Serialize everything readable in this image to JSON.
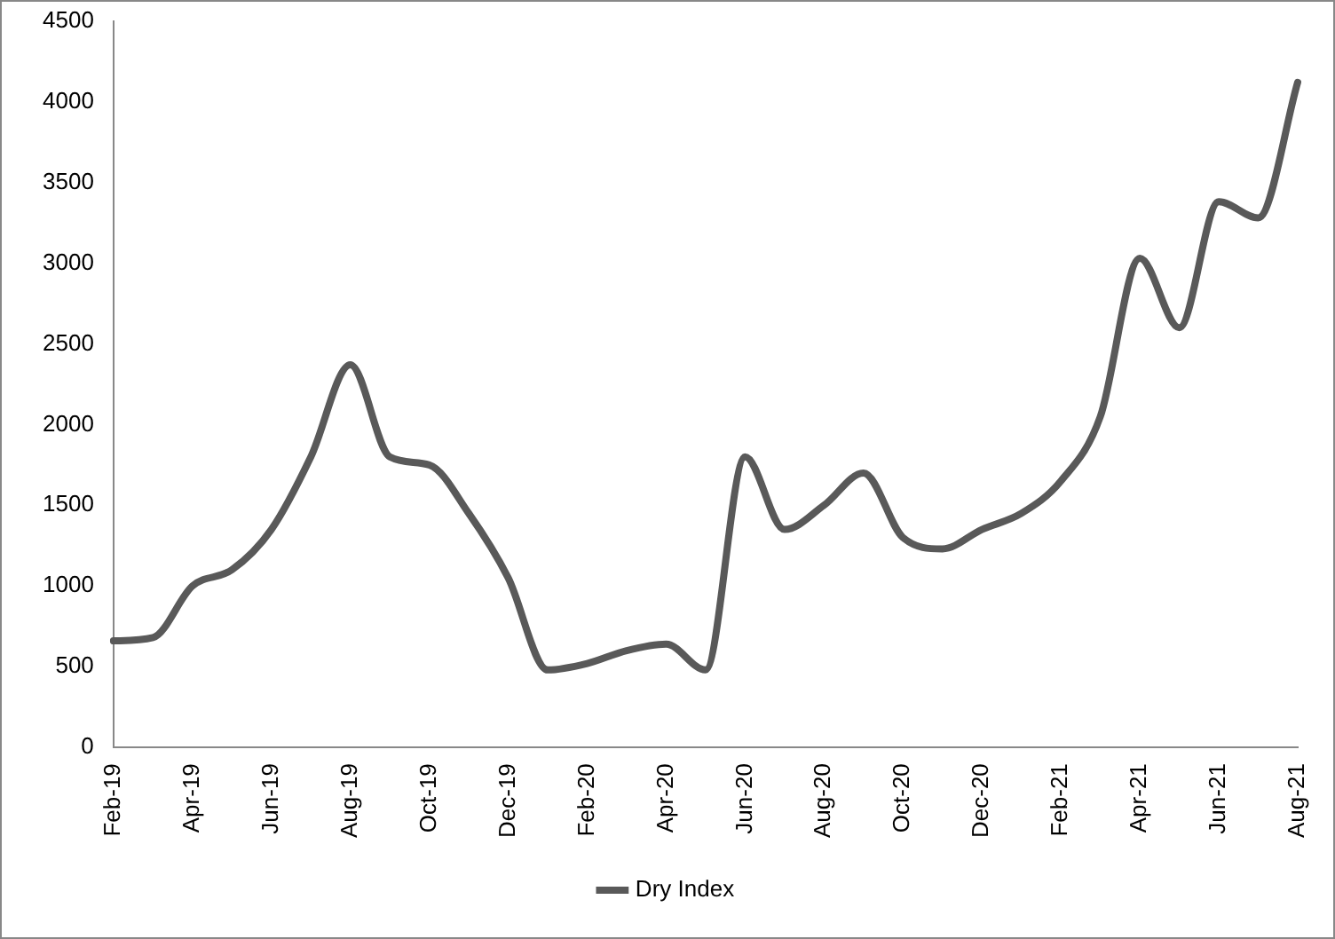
{
  "chart_data": {
    "type": "line",
    "categories": [
      "Feb-19",
      null,
      "Apr-19",
      null,
      "Jun-19",
      null,
      "Aug-19",
      null,
      "Oct-19",
      null,
      "Dec-19",
      null,
      "Feb-20",
      null,
      "Apr-20",
      null,
      "Jun-20",
      null,
      "Aug-20",
      null,
      "Oct-20",
      null,
      "Dec-20",
      null,
      "Feb-21",
      null,
      "Apr-21",
      null,
      "Jun-21",
      null,
      "Aug-21"
    ],
    "series": [
      {
        "name": "Dry Index",
        "color": "#595959",
        "values": [
          660,
          680,
          1000,
          1100,
          1350,
          1800,
          2370,
          1800,
          1750,
          1450,
          1050,
          480,
          520,
          600,
          640,
          480,
          1800,
          1350,
          1500,
          1700,
          1300,
          1230,
          1350,
          1450,
          1650,
          2050,
          3030,
          2600,
          3380,
          3280,
          4120
        ]
      }
    ],
    "ylim": [
      0,
      4500
    ],
    "yticks": [
      0,
      500,
      1000,
      1500,
      2000,
      2500,
      3000,
      3500,
      4000,
      4500
    ],
    "grid": false,
    "legend": "bottom",
    "marker": "none",
    "line_style": "solid"
  }
}
